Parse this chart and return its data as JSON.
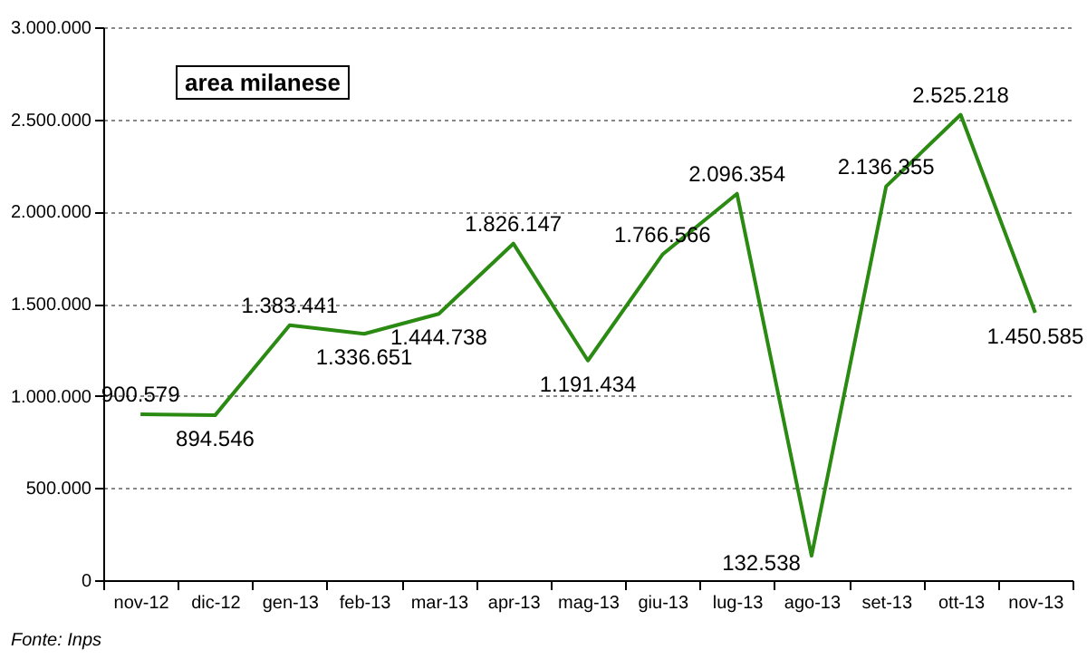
{
  "chart_data": {
    "type": "line",
    "title": "area milanese",
    "categories": [
      "nov-12",
      "dic-12",
      "gen-13",
      "feb-13",
      "mar-13",
      "apr-13",
      "mag-13",
      "giu-13",
      "lug-13",
      "ago-13",
      "set-13",
      "ott-13",
      "nov-13"
    ],
    "series": [
      {
        "color": "#2a8a12",
        "values": [
          900579,
          894546,
          1383441,
          1336651,
          1444738,
          1826147,
          1191434,
          1766566,
          2096354,
          132538,
          2136355,
          2525218,
          1450585
        ],
        "value_labels": [
          "900.579",
          "894.546",
          "1.383.441",
          "1.336.651",
          "1.444.738",
          "1.826.147",
          "1.191.434",
          "1.766.566",
          "2.096.354",
          "132.538",
          "2.136.355",
          "2.525.218",
          "1.450.585"
        ]
      }
    ],
    "ylim": [
      0,
      3000000
    ],
    "yticks": [
      {
        "value": 0,
        "label": "0"
      },
      {
        "value": 500000,
        "label": "500.000"
      },
      {
        "value": 1000000,
        "label": "1.000.000"
      },
      {
        "value": 1500000,
        "label": "1.500.000"
      },
      {
        "value": 2000000,
        "label": "2.000.000"
      },
      {
        "value": 2500000,
        "label": "2.500.000"
      },
      {
        "value": 3000000,
        "label": "3.000.000"
      }
    ],
    "grid": "y",
    "marker": "none",
    "line_style": "solid",
    "annotations": [
      "Fonte: Inps"
    ]
  }
}
